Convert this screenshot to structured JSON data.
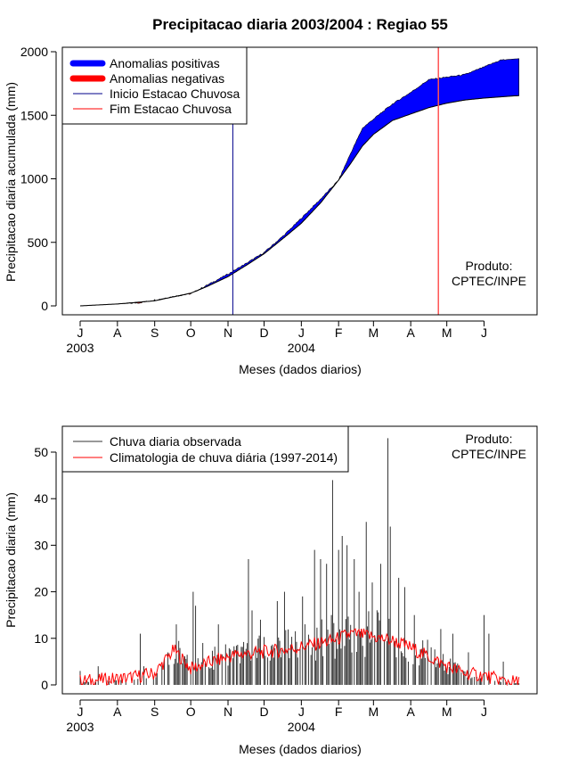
{
  "title": "Precipitacao diaria 2003/2004 : Regiao 55",
  "chart_data": [
    {
      "type": "area",
      "ylabel": "Precipitacao diaria acumulada (mm)",
      "xlabel": "Meses (dados diarios)",
      "ylim": [
        0,
        2000
      ],
      "y_ticks": [
        0,
        500,
        1000,
        1500,
        2000
      ],
      "x_tick_labels": [
        "J",
        "A",
        "S",
        "O",
        "N",
        "D",
        "J",
        "F",
        "M",
        "A",
        "M",
        "J"
      ],
      "x_tick_days": [
        0,
        31,
        62,
        92,
        123,
        153,
        184,
        215,
        244,
        275,
        305,
        336
      ],
      "year_labels": [
        {
          "text": "2003",
          "day": 0
        },
        {
          "text": "2004",
          "day": 184
        }
      ],
      "days_total": 366,
      "legend": {
        "position": "top-left",
        "items": [
          {
            "label": "Anomalias positivas",
            "color": "#0000ff",
            "style": "thick"
          },
          {
            "label": "Anomalias negativas",
            "color": "#ff0000",
            "style": "thick"
          },
          {
            "label": "Inicio Estacao Chuvosa",
            "color": "#00008b",
            "style": "thin"
          },
          {
            "label": "Fim Estacao Chuvosa",
            "color": "#ff0000",
            "style": "thin"
          }
        ]
      },
      "season_start_day": 127,
      "season_end_day": 298,
      "climatology_cumulative": {
        "days": [
          0,
          31,
          62,
          92,
          105,
          123,
          140,
          153,
          170,
          184,
          200,
          215,
          225,
          235,
          244,
          260,
          275,
          290,
          305,
          320,
          336,
          350,
          365
        ],
        "values": [
          0,
          15,
          40,
          100,
          150,
          230,
          330,
          410,
          540,
          650,
          810,
          990,
          1120,
          1260,
          1350,
          1460,
          1510,
          1560,
          1595,
          1620,
          1635,
          1645,
          1655
        ]
      },
      "observed_cumulative": {
        "days": [
          0,
          31,
          50,
          62,
          75,
          92,
          105,
          123,
          140,
          153,
          170,
          184,
          200,
          215,
          225,
          235,
          244,
          260,
          275,
          290,
          305,
          320,
          336,
          350,
          365
        ],
        "values": [
          0,
          15,
          25,
          45,
          70,
          95,
          160,
          250,
          345,
          420,
          560,
          690,
          840,
          990,
          1200,
          1400,
          1470,
          1590,
          1680,
          1780,
          1800,
          1820,
          1880,
          1935,
          1945
        ]
      },
      "annotation": "Produto:\nCPTEC/INPE",
      "annotation_lines": [
        "Produto:",
        "CPTEC/INPE"
      ]
    },
    {
      "type": "bar",
      "ylabel": "Precipitacao diaria (mm)",
      "xlabel": "Meses (dados diarios)",
      "ylim": [
        0,
        55
      ],
      "y_ticks": [
        0,
        10,
        20,
        30,
        40,
        50
      ],
      "x_tick_labels": [
        "J",
        "A",
        "S",
        "O",
        "N",
        "D",
        "J",
        "F",
        "M",
        "A",
        "M",
        "J"
      ],
      "x_tick_days": [
        0,
        31,
        62,
        92,
        123,
        153,
        184,
        215,
        244,
        275,
        305,
        336
      ],
      "year_labels": [
        {
          "text": "2003",
          "day": 0
        },
        {
          "text": "2004",
          "day": 184
        }
      ],
      "days_total": 366,
      "legend": {
        "position": "top-left",
        "items": [
          {
            "label": "Chuva diaria observada",
            "color": "#333333"
          },
          {
            "label": "Climatologia de chuva diária (1997-2014)",
            "color": "#ff0000"
          }
        ]
      },
      "observed_peaks": [
        {
          "day": 0,
          "value": 3
        },
        {
          "day": 15,
          "value": 4
        },
        {
          "day": 50,
          "value": 11
        },
        {
          "day": 53,
          "value": 4
        },
        {
          "day": 80,
          "value": 13
        },
        {
          "day": 94,
          "value": 20
        },
        {
          "day": 96,
          "value": 17
        },
        {
          "day": 102,
          "value": 9
        },
        {
          "day": 115,
          "value": 13
        },
        {
          "day": 140,
          "value": 27
        },
        {
          "day": 143,
          "value": 16
        },
        {
          "day": 150,
          "value": 14
        },
        {
          "day": 164,
          "value": 18
        },
        {
          "day": 170,
          "value": 20
        },
        {
          "day": 185,
          "value": 19
        },
        {
          "day": 195,
          "value": 29
        },
        {
          "day": 200,
          "value": 27
        },
        {
          "day": 205,
          "value": 26
        },
        {
          "day": 210,
          "value": 44
        },
        {
          "day": 215,
          "value": 29
        },
        {
          "day": 218,
          "value": 32
        },
        {
          "day": 222,
          "value": 30
        },
        {
          "day": 228,
          "value": 27
        },
        {
          "day": 232,
          "value": 20
        },
        {
          "day": 238,
          "value": 35
        },
        {
          "day": 243,
          "value": 22
        },
        {
          "day": 250,
          "value": 26
        },
        {
          "day": 256,
          "value": 53
        },
        {
          "day": 258,
          "value": 34
        },
        {
          "day": 265,
          "value": 23
        },
        {
          "day": 270,
          "value": 21
        },
        {
          "day": 278,
          "value": 15
        },
        {
          "day": 300,
          "value": 12
        },
        {
          "day": 310,
          "value": 11
        },
        {
          "day": 323,
          "value": 7
        },
        {
          "day": 336,
          "value": 15
        },
        {
          "day": 340,
          "value": 11
        },
        {
          "day": 352,
          "value": 5
        }
      ],
      "climatology_peaks": [
        {
          "day": 0,
          "value": 0.8
        },
        {
          "day": 40,
          "value": 1.5
        },
        {
          "day": 62,
          "value": 2.5
        },
        {
          "day": 78,
          "value": 7.5
        },
        {
          "day": 92,
          "value": 3.5
        },
        {
          "day": 110,
          "value": 5
        },
        {
          "day": 130,
          "value": 6.5
        },
        {
          "day": 150,
          "value": 7
        },
        {
          "day": 170,
          "value": 7.5
        },
        {
          "day": 190,
          "value": 8.5
        },
        {
          "day": 210,
          "value": 9.5
        },
        {
          "day": 225,
          "value": 11
        },
        {
          "day": 240,
          "value": 10.5
        },
        {
          "day": 260,
          "value": 9.5
        },
        {
          "day": 275,
          "value": 8
        },
        {
          "day": 290,
          "value": 6
        },
        {
          "day": 305,
          "value": 4
        },
        {
          "day": 320,
          "value": 2.5
        },
        {
          "day": 336,
          "value": 2
        },
        {
          "day": 350,
          "value": 1
        },
        {
          "day": 365,
          "value": 0.5
        }
      ],
      "annotation": "Produto:\nCPTEC/INPE",
      "annotation_lines": [
        "Produto:",
        "CPTEC/INPE"
      ]
    }
  ]
}
